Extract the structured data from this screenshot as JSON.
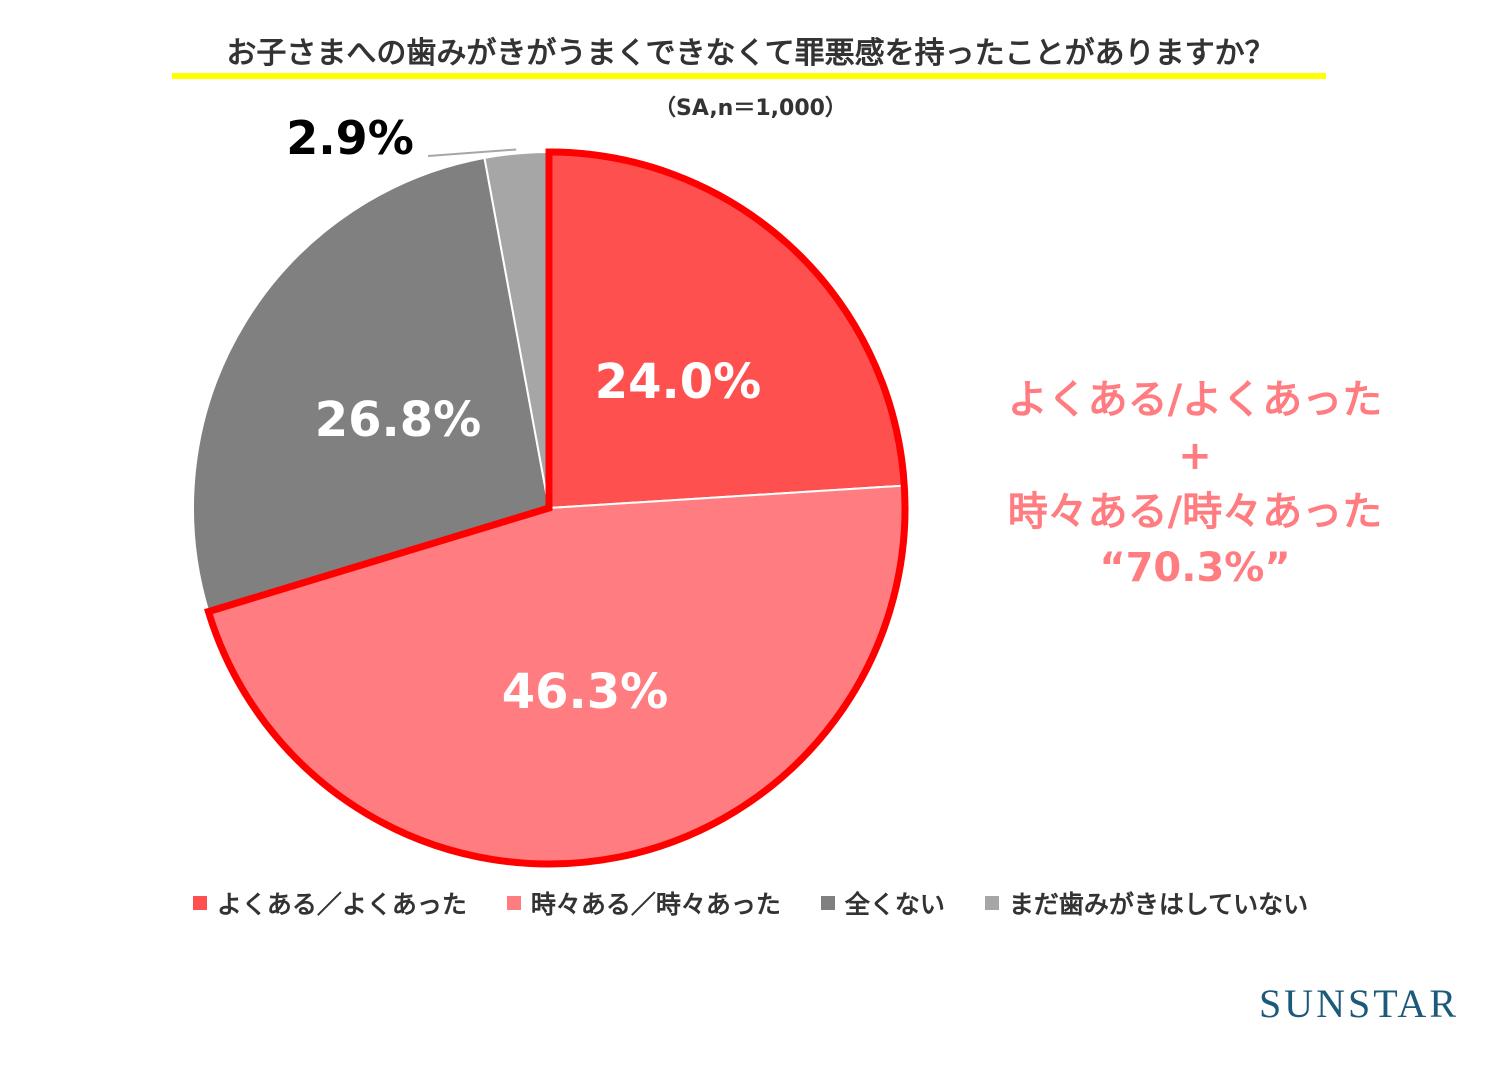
{
  "title": "お子さまへの歯みがきがうまくできなくて罪悪感を持ったことがありますか？",
  "subtitle": "（SA,n＝1,000）",
  "chart_data": {
    "type": "pie",
    "slices": [
      {
        "name": "よくある／よくあった",
        "value": 24.0,
        "label": "24.0%",
        "color": "#ff5050"
      },
      {
        "name": "時々ある／時々あった",
        "value": 46.3,
        "label": "46.3%",
        "color": "#ff7c80"
      },
      {
        "name": "全くない",
        "value": 26.8,
        "label": "26.8%",
        "color": "#808080"
      },
      {
        "name": "まだ歯みがきはしていない",
        "value": 2.9,
        "label": "2.9%",
        "color": "#a6a6a6"
      }
    ],
    "start_angle": "12 o'clock",
    "direction": "clockwise",
    "highlight": {
      "slices": [
        0,
        1
      ],
      "outline_color": "#ff0000"
    },
    "legend_position": "bottom"
  },
  "callout": {
    "lines": [
      "よくある/よくあった",
      "+",
      "時々ある/時々あった",
      "“70.3%”"
    ],
    "color": "#ff7c80"
  },
  "logo": "SUNSTAR"
}
